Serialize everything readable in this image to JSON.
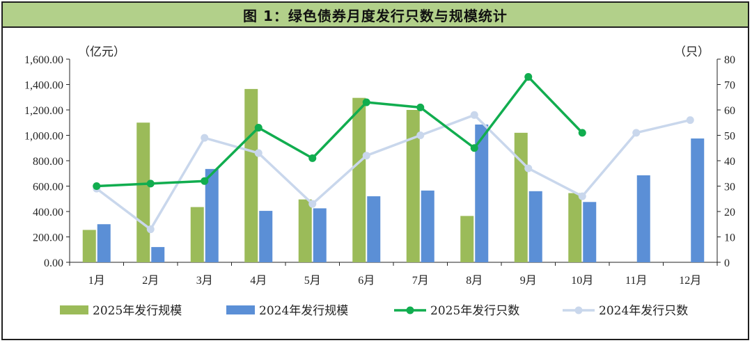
{
  "chart_data": {
    "type": "bar+line",
    "title": "图 1：绿色债券月度发行只数与规模统计",
    "categories": [
      "1月",
      "2月",
      "3月",
      "4月",
      "5月",
      "6月",
      "7月",
      "8月",
      "9月",
      "10月",
      "11月",
      "12月"
    ],
    "y_left": {
      "unit": "（亿元）",
      "range": [
        0,
        1600
      ],
      "ticks": [
        "0.00",
        "200.00",
        "400.00",
        "600.00",
        "800.00",
        "1,000.00",
        "1,200.00",
        "1,400.00",
        "1,600.00"
      ]
    },
    "y_right": {
      "unit": "（只）",
      "range": [
        0,
        80
      ],
      "ticks": [
        "0",
        "10",
        "20",
        "30",
        "40",
        "50",
        "60",
        "70",
        "80"
      ]
    },
    "bars": [
      {
        "name": "2025年发行规模",
        "color": "#9bbb59",
        "values": [
          255,
          1100,
          435,
          1365,
          495,
          1295,
          1200,
          365,
          1020,
          545,
          null,
          null
        ]
      },
      {
        "name": "2024年发行规模",
        "color": "#5b8fd6",
        "values": [
          300,
          120,
          735,
          405,
          425,
          520,
          565,
          1085,
          560,
          475,
          685,
          975
        ]
      }
    ],
    "lines": [
      {
        "name": "2025年发行只数",
        "color": "#11ad4f",
        "values": [
          30,
          31,
          32,
          53,
          41,
          63,
          61,
          45,
          73,
          51,
          null,
          null
        ]
      },
      {
        "name": "2024年发行只数",
        "color": "#c9d7ec",
        "values": [
          29,
          13,
          49,
          43,
          23,
          42,
          50,
          58,
          37,
          26,
          51,
          56
        ]
      }
    ],
    "grid": false,
    "legend": "bottom"
  }
}
